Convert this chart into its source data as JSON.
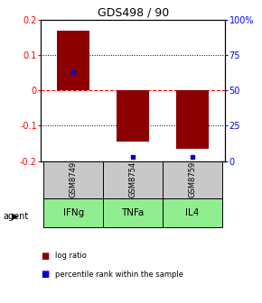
{
  "title": "GDS498 / 90",
  "samples": [
    "GSM8749",
    "GSM8754",
    "GSM8759"
  ],
  "agents": [
    "IFNg",
    "TNFa",
    "IL4"
  ],
  "log_ratios": [
    0.17,
    -0.145,
    -0.165
  ],
  "percentile_ranks": [
    0.63,
    0.03,
    0.03
  ],
  "ylim_left": [
    -0.2,
    0.2
  ],
  "ylim_right": [
    0.0,
    1.0
  ],
  "yticks_left": [
    -0.2,
    -0.1,
    0.0,
    0.1,
    0.2
  ],
  "ytick_labels_left": [
    "-0.2",
    "-0.1",
    "0",
    "0.1",
    "0.2"
  ],
  "yticks_right": [
    0.0,
    0.25,
    0.5,
    0.75,
    1.0
  ],
  "ytick_labels_right": [
    "0",
    "25",
    "50",
    "75",
    "100%"
  ],
  "bar_color": "#8b0000",
  "percentile_color": "#0000cd",
  "bar_width": 0.55,
  "sample_bg_color": "#c8c8c8",
  "agent_colors": [
    "#90ee90",
    "#90ee90",
    "#90ee90"
  ],
  "legend_items": [
    "log ratio",
    "percentile rank within the sample"
  ]
}
